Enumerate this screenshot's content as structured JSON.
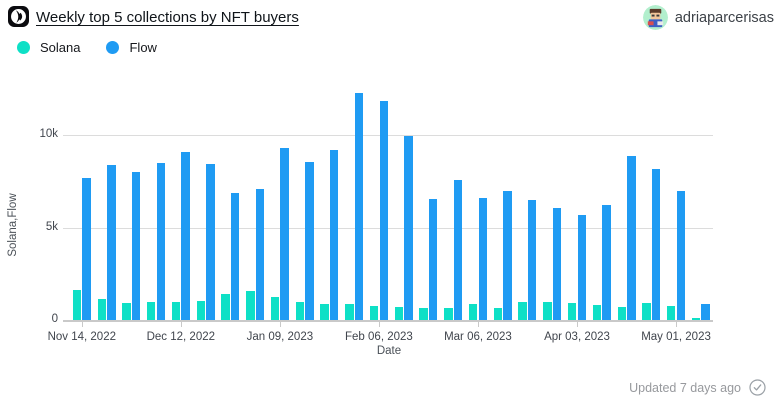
{
  "header": {
    "title": "Weekly top 5 collections by NFT buyers",
    "username": "adriaparcerisas"
  },
  "legend": [
    {
      "label": "Solana",
      "color": "#0ee0c6"
    },
    {
      "label": "Flow",
      "color": "#1f9bf3"
    }
  ],
  "footer": {
    "updated": "Updated 7 days ago"
  },
  "colors": {
    "solana": "#0ee0c6",
    "flow": "#1f9bf3",
    "gridline": "#dcdcdc",
    "axis_text": "#40454d",
    "muted_text": "#97999d"
  },
  "chart_data": {
    "type": "bar",
    "title": "Weekly top 5 collections by NFT buyers",
    "xlabel": "Date",
    "ylabel": "Solana,Flow",
    "ylim": [
      0,
      12500
    ],
    "grid": true,
    "legend_position": "top-left",
    "yticks": [
      {
        "value": 0,
        "label": "0"
      },
      {
        "value": 5000,
        "label": "5k"
      },
      {
        "value": 10000,
        "label": "10k"
      }
    ],
    "x_tick_labels": [
      "Nov 14, 2022",
      "Dec 12, 2022",
      "Jan 09, 2023",
      "Feb 06, 2023",
      "Mar 06, 2023",
      "Apr 03, 2023",
      "May 01, 2023"
    ],
    "x_tick_every": 4,
    "categories": [
      "Nov 14, 2022",
      "Nov 21, 2022",
      "Nov 28, 2022",
      "Dec 05, 2022",
      "Dec 12, 2022",
      "Dec 19, 2022",
      "Dec 26, 2022",
      "Jan 02, 2023",
      "Jan 09, 2023",
      "Jan 16, 2023",
      "Jan 23, 2023",
      "Jan 30, 2023",
      "Feb 06, 2023",
      "Feb 13, 2023",
      "Feb 20, 2023",
      "Feb 27, 2023",
      "Mar 06, 2023",
      "Mar 13, 2023",
      "Mar 20, 2023",
      "Mar 27, 2023",
      "Apr 03, 2023",
      "Apr 10, 2023",
      "Apr 17, 2023",
      "Apr 24, 2023",
      "May 01, 2023",
      "May 08, 2023"
    ],
    "series": [
      {
        "name": "Solana",
        "color": "#0ee0c6",
        "values": [
          1650,
          1150,
          900,
          1000,
          1000,
          1050,
          1400,
          1550,
          1250,
          950,
          850,
          850,
          750,
          700,
          650,
          650,
          850,
          650,
          1000,
          950,
          900,
          800,
          700,
          900,
          750,
          100
        ]
      },
      {
        "name": "Flow",
        "color": "#1f9bf3",
        "values": [
          7700,
          8400,
          8000,
          8500,
          9100,
          8450,
          6850,
          7100,
          9300,
          8550,
          9200,
          12300,
          11850,
          9950,
          6550,
          7600,
          6600,
          7000,
          6500,
          6050,
          5700,
          6250,
          8900,
          8150,
          7000,
          850
        ]
      }
    ]
  }
}
